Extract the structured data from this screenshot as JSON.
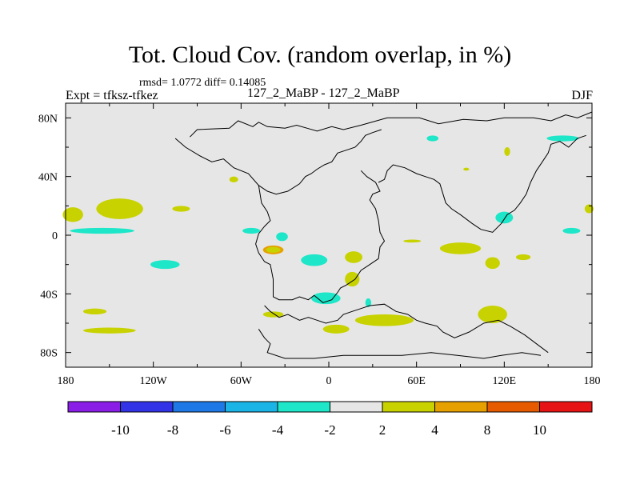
{
  "chart_data": {
    "type": "contour_map",
    "title": "Tot. Cloud Cov. (random overlap, in %)",
    "stats": "rmsd= 1.0772 diff= 0.14085",
    "left_label": "Expt = tfksz-tfkez",
    "center_label": "127_2_MaBP - 127_2_MaBP",
    "season": "DJF",
    "x_axis": {
      "range": [
        -180,
        180
      ],
      "ticks": [
        {
          "value": -180,
          "label": "180"
        },
        {
          "value": -120,
          "label": "120W"
        },
        {
          "value": -60,
          "label": "60W"
        },
        {
          "value": 0,
          "label": "0"
        },
        {
          "value": 60,
          "label": "60E"
        },
        {
          "value": 120,
          "label": "120E"
        },
        {
          "value": 180,
          "label": "180"
        }
      ]
    },
    "y_axis": {
      "range": [
        -90,
        90
      ],
      "ticks": [
        {
          "value": 80,
          "label": "80N"
        },
        {
          "value": 40,
          "label": "40N"
        },
        {
          "value": 0,
          "label": "0"
        },
        {
          "value": -40,
          "label": "40S"
        },
        {
          "value": -80,
          "label": "80S"
        }
      ]
    },
    "colorbar": {
      "colors": [
        "#8a1ee6",
        "#3232e6",
        "#1e78e6",
        "#1ab4e6",
        "#1ee6c8",
        "#e6e6e6",
        "#c8d200",
        "#e6a000",
        "#e65a00",
        "#e61414"
      ],
      "boundaries": [
        "-10",
        "-8",
        "-6",
        "-4",
        "-2",
        "2",
        "4",
        "8",
        "10"
      ]
    },
    "background_color": "#e6e6e6",
    "coastline_color": "#000000",
    "anomaly_regions": [
      {
        "bin": "2 to 4",
        "color": "#c8d200",
        "lon": -143,
        "lat": 18,
        "dlon": 16,
        "dlat": 7
      },
      {
        "bin": "2 to 4",
        "color": "#c8d200",
        "lon": -175,
        "lat": 14,
        "dlon": 7,
        "dlat": 5
      },
      {
        "bin": "-4 to -2",
        "color": "#1ee6c8",
        "lon": -155,
        "lat": 3,
        "dlon": 22,
        "dlat": 2
      },
      {
        "bin": "-4 to -2",
        "color": "#1ee6c8",
        "lon": -53,
        "lat": 3,
        "dlon": 6,
        "dlat": 2
      },
      {
        "bin": "2 to 4",
        "color": "#c8d200",
        "lon": -101,
        "lat": 18,
        "dlon": 6,
        "dlat": 2
      },
      {
        "bin": "-4 to -2",
        "color": "#1ee6c8",
        "lon": -112,
        "lat": -20,
        "dlon": 10,
        "dlat": 3
      },
      {
        "bin": "-4 to -2",
        "color": "#1ee6c8",
        "lon": -32,
        "lat": -1,
        "dlon": 4,
        "dlat": 3
      },
      {
        "bin": "4 to 8",
        "color": "#e6a000",
        "lon": -38,
        "lat": -10,
        "dlon": 7,
        "dlat": 3
      },
      {
        "bin": "2 to 4",
        "color": "#c8d200",
        "lon": -38,
        "lat": -10,
        "dlon": 5,
        "dlat": 2
      },
      {
        "bin": "-4 to -2",
        "color": "#1ee6c8",
        "lon": -10,
        "lat": -17,
        "dlon": 9,
        "dlat": 4
      },
      {
        "bin": "2 to 4",
        "color": "#c8d200",
        "lon": 17,
        "lat": -15,
        "dlon": 6,
        "dlat": 4
      },
      {
        "bin": "2 to 4",
        "color": "#c8d200",
        "lon": 16,
        "lat": -30,
        "dlon": 5,
        "dlat": 5
      },
      {
        "bin": "2 to 4",
        "color": "#c8d200",
        "lon": 90,
        "lat": -9,
        "dlon": 14,
        "dlat": 4
      },
      {
        "bin": "2 to 4",
        "color": "#c8d200",
        "lon": 112,
        "lat": -19,
        "dlon": 5,
        "dlat": 4
      },
      {
        "bin": "2 to 4",
        "color": "#c8d200",
        "lon": 133,
        "lat": -15,
        "dlon": 5,
        "dlat": 2
      },
      {
        "bin": "2 to 4",
        "color": "#c8d200",
        "lon": 57,
        "lat": -4,
        "dlon": 6,
        "dlat": 1
      },
      {
        "bin": "2 to 4",
        "color": "#c8d200",
        "lon": 112,
        "lat": -54,
        "dlon": 10,
        "dlat": 6
      },
      {
        "bin": "2 to 4",
        "color": "#c8d200",
        "lon": 38,
        "lat": -58,
        "dlon": 20,
        "dlat": 4
      },
      {
        "bin": "2 to 4",
        "color": "#c8d200",
        "lon": 5,
        "lat": -64,
        "dlon": 9,
        "dlat": 3
      },
      {
        "bin": "2 to 4",
        "color": "#c8d200",
        "lon": -150,
        "lat": -65,
        "dlon": 18,
        "dlat": 2
      },
      {
        "bin": "2 to 4",
        "color": "#c8d200",
        "lon": -160,
        "lat": -52,
        "dlon": 8,
        "dlat": 2
      },
      {
        "bin": "2 to 4",
        "color": "#c8d200",
        "lon": -38,
        "lat": -54,
        "dlon": 7,
        "dlat": 2
      },
      {
        "bin": "-4 to -2",
        "color": "#1ee6c8",
        "lon": -2,
        "lat": -43,
        "dlon": 10,
        "dlat": 4
      },
      {
        "bin": "-4 to -2",
        "color": "#1ee6c8",
        "lon": 27,
        "lat": -46,
        "dlon": 2,
        "dlat": 3
      },
      {
        "bin": "-4 to -2",
        "color": "#1ee6c8",
        "lon": 120,
        "lat": 12,
        "dlon": 6,
        "dlat": 4
      },
      {
        "bin": "-4 to -2",
        "color": "#1ee6c8",
        "lon": 166,
        "lat": 3,
        "dlon": 6,
        "dlat": 2
      },
      {
        "bin": "-4 to -2",
        "color": "#1ee6c8",
        "lon": 160,
        "lat": 66,
        "dlon": 11,
        "dlat": 2
      },
      {
        "bin": "-4 to -2",
        "color": "#1ee6c8",
        "lon": 71,
        "lat": 66,
        "dlon": 4,
        "dlat": 2
      },
      {
        "bin": "2 to 4",
        "color": "#c8d200",
        "lon": 122,
        "lat": 57,
        "dlon": 2,
        "dlat": 3
      },
      {
        "bin": "2 to 4",
        "color": "#c8d200",
        "lon": 178,
        "lat": 18,
        "dlon": 3,
        "dlat": 3
      },
      {
        "bin": "2 to 4",
        "color": "#c8d200",
        "lon": 94,
        "lat": 45,
        "dlon": 2,
        "dlat": 1
      },
      {
        "bin": "2 to 4",
        "color": "#c8d200",
        "lon": -65,
        "lat": 38,
        "dlon": 3,
        "dlat": 2
      }
    ]
  }
}
